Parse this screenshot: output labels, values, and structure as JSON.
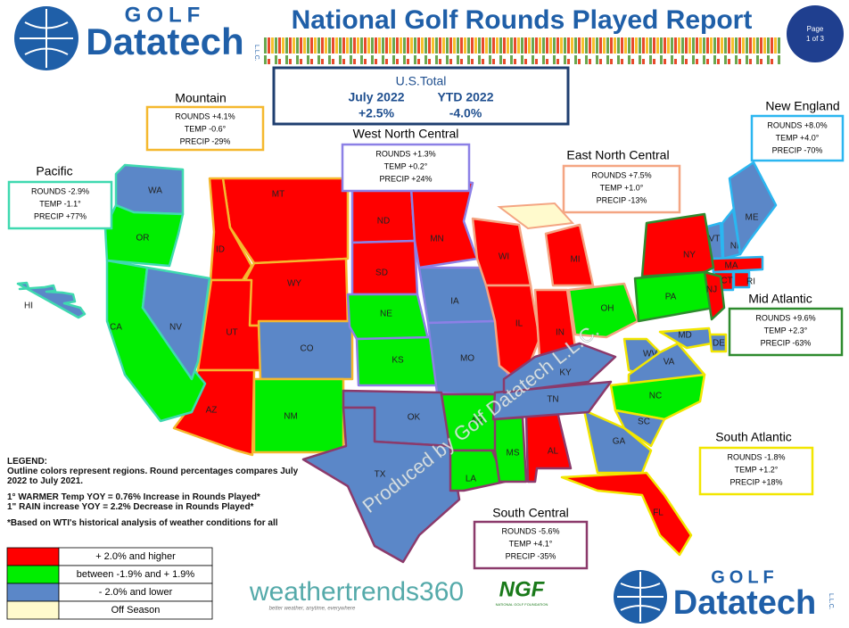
{
  "header": {
    "title": "National Golf Rounds Played Report",
    "page": "Page",
    "page_of": "1 of 3",
    "logo_top": "GOLF",
    "logo_main": "Datatech",
    "logo_llc": "L.L.C."
  },
  "us_total": {
    "title": "U.S.Total",
    "month": "July 2022",
    "ytd": "YTD  2022",
    "month_value": "+2.5%",
    "ytd_value": "-4.0%"
  },
  "regions": [
    {
      "name": "Mountain",
      "color": "#f5b82e",
      "rounds": "ROUNDS  +4.1%",
      "temp": "TEMP -0.6°",
      "precip": "PRECIP -29%",
      "states": [
        {
          "label": "MT",
          "color": "#ff0000"
        },
        {
          "label": "ID",
          "color": "#ff0000"
        },
        {
          "label": "WY",
          "color": "#ff0000"
        },
        {
          "label": "UT",
          "color": "#ff0000"
        },
        {
          "label": "CO",
          "color": "#5b87c8"
        },
        {
          "label": "AZ",
          "color": "#ff0000"
        },
        {
          "label": "NM",
          "color": "#00ee00"
        }
      ]
    },
    {
      "name": "Pacific",
      "color": "#3fd9b0",
      "rounds": "ROUNDS -2.9%",
      "temp": "TEMP -1.1°",
      "precip": "PRECIP +77%",
      "states": [
        {
          "label": "WA",
          "color": "#5b87c8"
        },
        {
          "label": "OR",
          "color": "#00ee00"
        },
        {
          "label": "CA",
          "color": "#00ee00"
        },
        {
          "label": "NV",
          "color": "#5b87c8"
        },
        {
          "label": "HI",
          "color": "#5b87c8"
        }
      ]
    },
    {
      "name": "West North Central",
      "color": "#8c80e6",
      "rounds": "ROUNDS  +1.3%",
      "temp": "TEMP +0.2°",
      "precip": "PRECIP +24%",
      "states": [
        {
          "label": "ND",
          "color": "#ff0000"
        },
        {
          "label": "SD",
          "color": "#ff0000"
        },
        {
          "label": "NE",
          "color": "#00ee00"
        },
        {
          "label": "KS",
          "color": "#00ee00"
        },
        {
          "label": "MN",
          "color": "#ff0000"
        },
        {
          "label": "IA",
          "color": "#5b87c8"
        },
        {
          "label": "MO",
          "color": "#5b87c8"
        }
      ]
    },
    {
      "name": "East North Central",
      "color": "#f4a582",
      "rounds": "ROUNDS  +7.5%",
      "temp": "TEMP +1.0°",
      "precip": "PRECIP -13%",
      "states": [
        {
          "label": "WI",
          "color": "#ff0000"
        },
        {
          "label": "MI",
          "color": "#ff0000"
        },
        {
          "label": "IL",
          "color": "#ff0000"
        },
        {
          "label": "IN",
          "color": "#ff0000"
        },
        {
          "label": "OH",
          "color": "#00ee00"
        }
      ]
    },
    {
      "name": "New England",
      "color": "#2bb6f0",
      "rounds": "ROUNDS  +8.0%",
      "temp": "TEMP +4.0°",
      "precip": "PRECIP -70%",
      "states": [
        {
          "label": "VT",
          "color": "#5b87c8"
        },
        {
          "label": "NH",
          "color": "#5b87c8"
        },
        {
          "label": "ME",
          "color": "#5b87c8"
        },
        {
          "label": "MA",
          "color": "#ff0000"
        },
        {
          "label": "CT",
          "color": "#ff0000"
        },
        {
          "label": "RI",
          "color": "#ff0000"
        }
      ]
    },
    {
      "name": "Mid Atlantic",
      "color": "#2e8b2e",
      "rounds": "ROUNDS +9.6%",
      "temp": "TEMP +2.3°",
      "precip": "PRECIP -63%",
      "states": [
        {
          "label": "NY",
          "color": "#ff0000"
        },
        {
          "label": "PA",
          "color": "#00ee00"
        },
        {
          "label": "NJ",
          "color": "#ff0000"
        }
      ]
    },
    {
      "name": "South Atlantic",
      "color": "#f2e600",
      "rounds": "ROUNDS  -1.8%",
      "temp": "TEMP +1.2°",
      "precip": "PRECIP +18%",
      "states": [
        {
          "label": "WV",
          "color": "#5b87c8"
        },
        {
          "label": "VA",
          "color": "#5b87c8"
        },
        {
          "label": "NC",
          "color": "#00ee00"
        },
        {
          "label": "SC",
          "color": "#5b87c8"
        },
        {
          "label": "GA",
          "color": "#5b87c8"
        },
        {
          "label": "FL",
          "color": "#ff0000"
        },
        {
          "label": "MD",
          "color": "#5b87c8"
        },
        {
          "label": "DE",
          "color": "#5b87c8"
        }
      ]
    },
    {
      "name": "South Central",
      "color": "#8b3a6b",
      "rounds": "ROUNDS  -5.6%",
      "temp": "TEMP +4.1°",
      "precip": "PRECIP -35%",
      "states": [
        {
          "label": "OK",
          "color": "#5b87c8"
        },
        {
          "label": "TX",
          "color": "#5b87c8"
        },
        {
          "label": "AR",
          "color": "#00ee00"
        },
        {
          "label": "LA",
          "color": "#00ee00"
        },
        {
          "label": "MS",
          "color": "#00ee00"
        },
        {
          "label": "AL",
          "color": "#ff0000"
        },
        {
          "label": "TN",
          "color": "#5b87c8"
        },
        {
          "label": "KY",
          "color": "#5b87c8"
        }
      ]
    }
  ],
  "off_season_color": "#fffacd",
  "watermark": "Produced by Golf Datatech L.L.C.",
  "legend": {
    "title": "LEGEND:",
    "description": "Outline colors represent regions. Round percentages compares July 2022 to July 2021.",
    "note1": "1° WARMER Temp YOY = 0.76% Increase in Rounds Played*",
    "note2": "1\" RAIN increase YOY = 2.2% Decrease in Rounds Played*",
    "note3": "*Based on WTI's historical analysis of weather conditions for all",
    "items": [
      {
        "label": "+ 2.0% and higher",
        "color": "#ff0000"
      },
      {
        "label": "between -1.9% and + 1.9%",
        "color": "#00ee00"
      },
      {
        "label": "- 2.0% and lower",
        "color": "#5b87c8"
      },
      {
        "label": "Off Season",
        "color": "#fffacd"
      }
    ]
  },
  "footer": {
    "weathertrends": "weathertrends360",
    "tagline": "better weather, anytime, everywhere",
    "ngf": "NGF",
    "ngf_full": "NATIONAL GOLF FOUNDATION"
  }
}
